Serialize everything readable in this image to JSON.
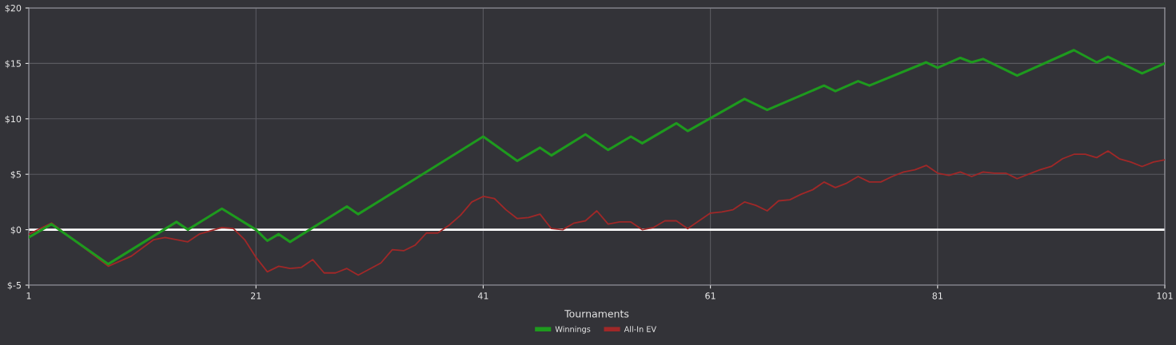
{
  "chart_data": {
    "type": "line",
    "xlabel": "Tournaments",
    "xlim": [
      1,
      101
    ],
    "xticks": [
      1,
      21,
      41,
      61,
      81,
      101
    ],
    "ylim": [
      -5,
      20
    ],
    "yticks": [
      {
        "value": -5,
        "label": "$-5"
      },
      {
        "value": 0,
        "label": "$0"
      },
      {
        "value": 5,
        "label": "$5"
      },
      {
        "value": 10,
        "label": "$10"
      },
      {
        "value": 15,
        "label": "$15"
      },
      {
        "value": 20,
        "label": "$20"
      }
    ],
    "grid": true,
    "legend": "bottom",
    "marker": "none",
    "line_style": "solid",
    "ref_lines": [
      {
        "axis": "y",
        "value": 0,
        "color": "#ffffff"
      }
    ],
    "series": [
      {
        "name": "Winnings",
        "color": "#1e9a1e",
        "x": [
          1,
          3,
          8,
          14,
          15,
          18,
          21,
          22,
          23,
          24,
          29,
          30,
          41,
          44,
          46,
          47,
          50,
          52,
          54,
          55,
          58,
          59,
          64,
          66,
          71,
          72,
          74,
          75,
          80,
          81,
          83,
          84,
          85,
          88,
          93,
          95,
          96,
          99,
          101
        ],
        "values": [
          -0.7,
          0.5,
          -3.1,
          0.7,
          0,
          1.9,
          0,
          -1.0,
          -0.4,
          -1.1,
          2.1,
          1.4,
          8.4,
          6.2,
          7.4,
          6.7,
          8.6,
          7.2,
          8.4,
          7.8,
          9.6,
          8.9,
          11.8,
          10.8,
          13.0,
          12.5,
          13.4,
          13.0,
          15.1,
          14.6,
          15.5,
          15.1,
          15.4,
          13.9,
          16.2,
          15.1,
          15.6,
          14.1,
          15.0
        ]
      },
      {
        "name": "All-In EV",
        "color": "#a02828",
        "x": [
          1,
          3,
          8,
          10,
          12,
          13,
          15,
          16,
          18,
          19,
          20,
          21,
          22,
          23,
          24,
          25,
          26,
          27,
          28,
          29,
          30,
          32,
          33,
          34,
          35,
          36,
          37,
          38,
          39,
          40,
          41,
          42,
          43,
          44,
          45,
          46,
          47,
          48,
          49,
          50,
          51,
          52,
          53,
          54,
          55,
          56,
          57,
          58,
          59,
          60,
          61,
          62,
          63,
          64,
          65,
          66,
          67,
          68,
          69,
          70,
          71,
          72,
          73,
          74,
          75,
          76,
          77,
          78,
          79,
          80,
          81,
          82,
          83,
          84,
          85,
          86,
          87,
          88,
          89,
          90,
          91,
          92,
          93,
          94,
          95,
          96,
          97,
          98,
          99,
          100,
          101
        ],
        "values": [
          -0.4,
          0.6,
          -3.3,
          -2.4,
          -0.9,
          -0.7,
          -1.1,
          -0.4,
          0.2,
          0.1,
          -0.9,
          -2.5,
          -3.8,
          -3.3,
          -3.5,
          -3.4,
          -2.7,
          -3.9,
          -3.9,
          -3.5,
          -4.1,
          -3.0,
          -1.8,
          -1.9,
          -1.4,
          -0.3,
          -0.3,
          0.4,
          1.3,
          2.5,
          3.0,
          2.8,
          1.8,
          1.0,
          1.1,
          1.4,
          0.1,
          0,
          0.6,
          0.8,
          1.7,
          0.5,
          0.7,
          0.7,
          0,
          0.2,
          0.8,
          0.8,
          0.1,
          0.8,
          1.5,
          1.6,
          1.8,
          2.5,
          2.2,
          1.7,
          2.6,
          2.7,
          3.2,
          3.6,
          4.3,
          3.8,
          4.2,
          4.8,
          4.3,
          4.3,
          4.8,
          5.2,
          5.4,
          5.8,
          5.1,
          4.9,
          5.2,
          4.8,
          5.2,
          5.1,
          5.1,
          4.6,
          5.0,
          5.4,
          5.7,
          6.4,
          6.8,
          6.8,
          6.5,
          7.1,
          6.4,
          6.1,
          5.7,
          6.1,
          6.3
        ]
      }
    ]
  }
}
